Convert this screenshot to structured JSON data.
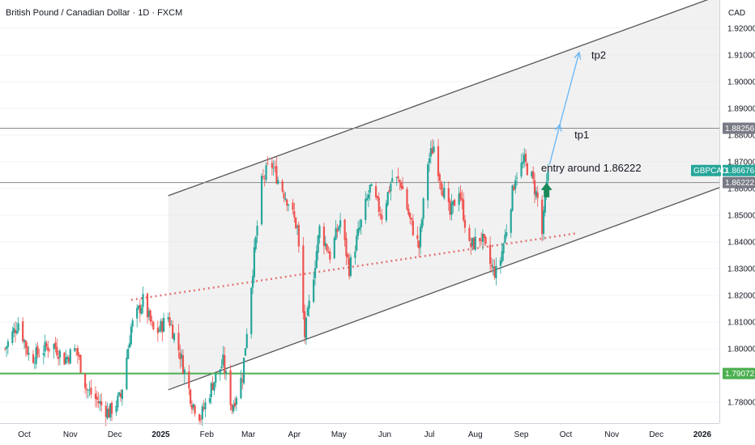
{
  "header": {
    "title": "British Pound / Canadian Dollar · 1D · FXCM"
  },
  "colors": {
    "up": "#26a69a",
    "down": "#ef5350",
    "channel_fill": "#e0e0e0",
    "support_line": "#4caf50",
    "trendline_dotted": "#e57373",
    "arrow": "#64b5f6",
    "entry_arrow": "#1b8a5a"
  },
  "chart_data": {
    "type": "candlestick",
    "symbol": "GBPCAD",
    "currency": "CAD",
    "y_ticks": [
      "1.92000",
      "1.91000",
      "1.90000",
      "1.89000",
      "1.88000",
      "1.87000",
      "1.86000",
      "1.85000",
      "1.84000",
      "1.83000",
      "1.82000",
      "1.81000",
      "1.80000",
      "1.79000",
      "1.78000"
    ],
    "y_tick_values": [
      1.92,
      1.91,
      1.9,
      1.89,
      1.88,
      1.87,
      1.86,
      1.85,
      1.84,
      1.83,
      1.82,
      1.81,
      1.8,
      1.79,
      1.78
    ],
    "ylim": [
      1.7735,
      1.9285
    ],
    "x_labels": [
      {
        "label": "Oct",
        "date": "2024-10-01",
        "bold": false
      },
      {
        "label": "Nov",
        "date": "2024-11-01",
        "bold": false
      },
      {
        "label": "Dec",
        "date": "2024-12-01",
        "bold": false
      },
      {
        "label": "2025",
        "date": "2025-01-01",
        "bold": true
      },
      {
        "label": "Feb",
        "date": "2025-02-01",
        "bold": false
      },
      {
        "label": "Mar",
        "date": "2025-03-01",
        "bold": false
      },
      {
        "label": "Apr",
        "date": "2025-04-01",
        "bold": false
      },
      {
        "label": "May",
        "date": "2025-05-01",
        "bold": false
      },
      {
        "label": "Jun",
        "date": "2025-06-01",
        "bold": false
      },
      {
        "label": "Jul",
        "date": "2025-07-01",
        "bold": false
      },
      {
        "label": "Aug",
        "date": "2025-08-01",
        "bold": false
      },
      {
        "label": "Sep",
        "date": "2025-09-01",
        "bold": false
      },
      {
        "label": "Oct",
        "date": "2025-10-01",
        "bold": false
      },
      {
        "label": "Nov",
        "date": "2025-11-01",
        "bold": false
      },
      {
        "label": "Dec",
        "date": "2025-12-01",
        "bold": false
      },
      {
        "label": "2026",
        "date": "2026-01-01",
        "bold": true
      }
    ],
    "price_path": [
      [
        "2024-09-18",
        1.8
      ],
      [
        "2024-09-27",
        1.81
      ],
      [
        "2024-10-05",
        1.796
      ],
      [
        "2024-10-12",
        1.799
      ],
      [
        "2024-10-20",
        1.802
      ],
      [
        "2024-10-28",
        1.796
      ],
      [
        "2024-11-05",
        1.8
      ],
      [
        "2024-11-12",
        1.785
      ],
      [
        "2024-11-20",
        1.78
      ],
      [
        "2024-11-27",
        1.776
      ],
      [
        "2024-12-05",
        1.782
      ],
      [
        "2024-12-12",
        1.808
      ],
      [
        "2024-12-20",
        1.818
      ],
      [
        "2024-12-28",
        1.805
      ],
      [
        "2025-01-06",
        1.812
      ],
      [
        "2025-01-14",
        1.798
      ],
      [
        "2025-01-22",
        1.78
      ],
      [
        "2025-01-28",
        1.7745
      ],
      [
        "2025-02-05",
        1.787
      ],
      [
        "2025-02-12",
        1.795
      ],
      [
        "2025-02-18",
        1.778
      ],
      [
        "2025-02-25",
        1.79
      ],
      [
        "2025-03-04",
        1.83
      ],
      [
        "2025-03-10",
        1.862
      ],
      [
        "2025-03-16",
        1.87
      ],
      [
        "2025-03-22",
        1.862
      ],
      [
        "2025-03-28",
        1.855
      ],
      [
        "2025-04-03",
        1.845
      ],
      [
        "2025-04-08",
        1.805
      ],
      [
        "2025-04-12",
        1.82
      ],
      [
        "2025-04-18",
        1.845
      ],
      [
        "2025-04-25",
        1.835
      ],
      [
        "2025-05-02",
        1.848
      ],
      [
        "2025-05-08",
        1.83
      ],
      [
        "2025-05-15",
        1.845
      ],
      [
        "2025-05-22",
        1.86
      ],
      [
        "2025-05-30",
        1.85
      ],
      [
        "2025-06-06",
        1.864
      ],
      [
        "2025-06-12",
        1.862
      ],
      [
        "2025-06-18",
        1.848
      ],
      [
        "2025-06-24",
        1.838
      ],
      [
        "2025-06-30",
        1.87
      ],
      [
        "2025-07-04",
        1.876
      ],
      [
        "2025-07-09",
        1.862
      ],
      [
        "2025-07-15",
        1.85
      ],
      [
        "2025-07-21",
        1.86
      ],
      [
        "2025-07-28",
        1.838
      ],
      [
        "2025-08-05",
        1.842
      ],
      [
        "2025-08-12",
        1.83
      ],
      [
        "2025-08-16",
        1.828
      ],
      [
        "2025-08-22",
        1.845
      ],
      [
        "2025-08-28",
        1.865
      ],
      [
        "2025-09-03",
        1.87
      ],
      [
        "2025-09-08",
        1.864
      ],
      [
        "2025-09-12",
        1.856
      ],
      [
        "2025-09-15",
        1.843
      ],
      [
        "2025-09-19",
        1.8667
      ]
    ],
    "lines": {
      "channel_upper": [
        [
          "2025-01-06",
          1.8573
        ],
        [
          "2026-01-01",
          1.93
        ]
      ],
      "channel_lower": [
        [
          "2025-01-06",
          1.7846
        ],
        [
          "2026-01-01",
          1.858
        ]
      ],
      "dotted_trendline": [
        [
          "2024-12-12",
          1.8183
        ],
        [
          "2025-10-08",
          1.8432
        ]
      ],
      "resistance": 1.88256,
      "entry": 1.86222,
      "support": 1.79072
    },
    "price_tags": {
      "resistance": "1.88256",
      "current_symbol": "GBPCAD",
      "current": "1.86676",
      "entry": "1.86222",
      "support": "1.79072"
    },
    "annotations": {
      "tp1": "tp1",
      "tp2": "tp2",
      "entry_text": "entry around 1.86222"
    },
    "arrow_points": {
      "tp1_start": [
        "2025-09-20",
        1.869
      ],
      "tp1_end": [
        "2025-09-27",
        1.884
      ],
      "tp2_end": [
        "2025-10-10",
        1.911
      ]
    }
  }
}
